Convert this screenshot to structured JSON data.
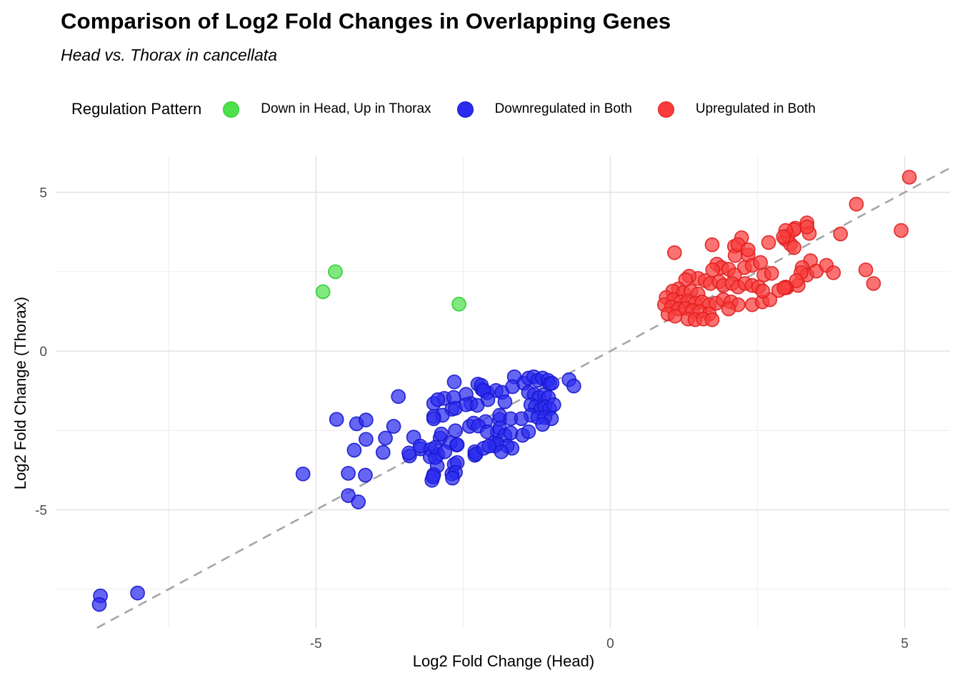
{
  "title": "Comparison of Log2 Fold Changes in Overlapping Genes",
  "subtitle": "Head vs. Thorax in cancellata",
  "legend": {
    "title": "Regulation Pattern",
    "items": [
      {
        "label": "Down in Head, Up in Thorax",
        "color": "#4de04d",
        "stroke": "#2ecc2e"
      },
      {
        "label": "Downregulated in Both",
        "color": "#2b2bee",
        "stroke": "#1717cf"
      },
      {
        "label": "Upregulated in Both",
        "color": "#f93b3b",
        "stroke": "#e01f1f"
      }
    ]
  },
  "colors": {
    "background": "#ffffff",
    "grid_major": "#e4e4e4",
    "grid_minor": "#f0f0f0",
    "identity_line": "#a6a6a6",
    "tick_text": "#4d4d4d"
  },
  "chart_data": {
    "type": "scatter",
    "title": "Comparison of Log2 Fold Changes in Overlapping Genes",
    "subtitle": "Head vs. Thorax in cancellata",
    "xlabel": "Log2 Fold Change (Head)",
    "ylabel": "Log2 Fold Change (Thorax)",
    "xlim": [
      -9.42,
      5.77
    ],
    "ylim": [
      -8.72,
      6.16
    ],
    "x_major_ticks": [
      -5,
      0,
      5
    ],
    "y_major_ticks": [
      5,
      0,
      -5
    ],
    "x_minor_ticks": [
      -7.5,
      -2.5,
      2.5
    ],
    "y_minor_ticks": [
      2.5,
      -2.5,
      -7.5
    ],
    "grid": true,
    "legend_position": "top",
    "identity_line": {
      "equation": "y = x",
      "style": "dashed",
      "color": "#a6a6a6"
    },
    "marker": {
      "radius": 9.5,
      "fill_opacity": 0.72,
      "stroke_opacity": 0.9,
      "stroke_width": 1.7
    },
    "series": [
      {
        "name": "Downregulated in Both",
        "color": "#2b2bee",
        "stroke": "#1717cf",
        "points": [
          [
            -8.66,
            -7.71
          ],
          [
            -8.68,
            -7.98
          ],
          [
            -8.03,
            -7.62
          ],
          [
            -5.22,
            -3.87
          ],
          [
            -4.65,
            -2.15
          ],
          [
            -4.45,
            -3.85
          ],
          [
            -4.45,
            -4.55
          ],
          [
            -4.28,
            -4.75
          ],
          [
            -4.31,
            -2.29
          ],
          [
            -4.15,
            -2.17
          ],
          [
            -4.35,
            -3.12
          ],
          [
            -4.15,
            -2.78
          ],
          [
            -4.16,
            -3.91
          ],
          [
            -3.86,
            -3.19
          ],
          [
            -3.82,
            -2.74
          ],
          [
            -3.68,
            -2.37
          ],
          [
            -3.6,
            -1.43
          ],
          [
            -3.34,
            -2.71
          ],
          [
            -3.41,
            -3.3
          ],
          [
            -3.22,
            -3.08
          ],
          [
            -3.42,
            -3.21
          ],
          [
            -3.23,
            -2.99
          ],
          [
            -3.05,
            -3.1
          ],
          [
            -2.93,
            -3.26
          ],
          [
            -3.06,
            -3.33
          ],
          [
            -2.94,
            -3.62
          ],
          [
            -3.0,
            -3.89
          ],
          [
            -3.03,
            -4.07
          ],
          [
            -3.0,
            -1.65
          ],
          [
            -3.0,
            -2.06
          ],
          [
            -2.82,
            -1.49
          ],
          [
            -2.89,
            -2.74
          ],
          [
            -2.97,
            -3.35
          ],
          [
            -3.01,
            -3.96
          ],
          [
            -2.65,
            -0.97
          ],
          [
            -2.69,
            -1.83
          ],
          [
            -2.63,
            -2.51
          ],
          [
            -2.61,
            -2.96
          ],
          [
            -2.65,
            -3.57
          ],
          [
            -2.69,
            -3.87
          ],
          [
            -2.66,
            -1.46
          ],
          [
            -2.93,
            -1.53
          ],
          [
            -2.63,
            -1.8
          ],
          [
            -2.85,
            -2.02
          ],
          [
            -3.0,
            -2.13
          ],
          [
            -2.87,
            -2.61
          ],
          [
            -2.72,
            -2.88
          ],
          [
            -2.6,
            -2.95
          ],
          [
            -2.97,
            -3.03
          ],
          [
            -2.6,
            -3.51
          ],
          [
            -2.63,
            -3.82
          ],
          [
            -2.68,
            -4.0
          ],
          [
            -2.3,
            -3.28
          ],
          [
            -2.3,
            -3.17
          ],
          [
            -2.81,
            -3.17
          ],
          [
            -2.45,
            -1.36
          ],
          [
            -2.37,
            -1.65
          ],
          [
            -2.39,
            -2.37
          ],
          [
            -2.25,
            -1.04
          ],
          [
            -2.18,
            -1.2
          ],
          [
            -2.12,
            -2.22
          ],
          [
            -2.09,
            -1.31
          ],
          [
            -1.94,
            -1.24
          ],
          [
            -1.88,
            -2.15
          ],
          [
            -1.92,
            -2.56
          ],
          [
            -2.28,
            -3.24
          ],
          [
            -2.19,
            -1.08
          ],
          [
            -2.15,
            -1.24
          ],
          [
            -2.08,
            -1.53
          ],
          [
            -2.45,
            -1.69
          ],
          [
            -2.26,
            -1.71
          ],
          [
            -2.32,
            -2.27
          ],
          [
            -2.24,
            -2.36
          ],
          [
            -2.09,
            -2.54
          ],
          [
            -1.84,
            -1.3
          ],
          [
            -1.79,
            -1.6
          ],
          [
            -1.88,
            -2.02
          ],
          [
            -1.69,
            -2.13
          ],
          [
            -1.88,
            -2.43
          ],
          [
            -1.79,
            -2.65
          ],
          [
            -1.69,
            -2.58
          ],
          [
            -1.63,
            -0.81
          ],
          [
            -1.66,
            -1.12
          ],
          [
            -1.47,
            -1.01
          ],
          [
            -1.39,
            -0.85
          ],
          [
            -1.3,
            -0.81
          ],
          [
            -1.23,
            -0.92
          ],
          [
            -1.15,
            -0.85
          ],
          [
            -1.06,
            -0.92
          ],
          [
            -1.03,
            -1.03
          ],
          [
            -0.99,
            -1.01
          ],
          [
            -1.39,
            -1.3
          ],
          [
            -1.29,
            -1.37
          ],
          [
            -1.21,
            -1.46
          ],
          [
            -1.12,
            -1.37
          ],
          [
            -1.05,
            -1.46
          ],
          [
            -1.35,
            -1.69
          ],
          [
            -1.27,
            -1.75
          ],
          [
            -1.18,
            -1.82
          ],
          [
            -1.11,
            -1.75
          ],
          [
            -1.03,
            -1.82
          ],
          [
            -0.96,
            -1.69
          ],
          [
            -1.35,
            -2.02
          ],
          [
            -1.23,
            -2.09
          ],
          [
            -1.11,
            -2.09
          ],
          [
            -1.0,
            -2.13
          ],
          [
            -1.51,
            -2.13
          ],
          [
            -1.15,
            -2.31
          ],
          [
            -1.97,
            -2.88
          ],
          [
            -1.75,
            -2.99
          ],
          [
            -2.15,
            -3.06
          ],
          [
            -1.96,
            -2.99
          ],
          [
            -1.92,
            -2.92
          ],
          [
            -1.49,
            -2.65
          ],
          [
            -1.39,
            -2.54
          ],
          [
            -1.67,
            -3.06
          ],
          [
            -1.85,
            -3.17
          ],
          [
            -2.06,
            -2.99
          ],
          [
            -0.7,
            -0.9
          ],
          [
            -0.62,
            -1.1
          ]
        ]
      },
      {
        "name": "Upregulated in Both",
        "color": "#f93b3b",
        "stroke": "#e01f1f",
        "points": [
          [
            1.09,
            3.1
          ],
          [
            1.73,
            3.35
          ],
          [
            2.11,
            3.3
          ],
          [
            2.12,
            3.01
          ],
          [
            2.34,
            3.03
          ],
          [
            2.69,
            3.42
          ],
          [
            2.97,
            3.53
          ],
          [
            3.06,
            3.37
          ],
          [
            3.4,
            2.85
          ],
          [
            3.26,
            2.63
          ],
          [
            2.23,
            3.57
          ],
          [
            2.17,
            3.35
          ],
          [
            2.34,
            3.19
          ],
          [
            3.02,
            3.64
          ],
          [
            3.14,
            3.87
          ],
          [
            3.34,
            4.04
          ],
          [
            3.38,
            3.71
          ],
          [
            1.81,
            2.74
          ],
          [
            1.89,
            2.63
          ],
          [
            1.74,
            2.56
          ],
          [
            2.01,
            2.58
          ],
          [
            2.28,
            2.63
          ],
          [
            2.41,
            2.7
          ],
          [
            2.55,
            2.79
          ],
          [
            2.61,
            2.4
          ],
          [
            2.74,
            2.45
          ],
          [
            2.11,
            2.4
          ],
          [
            1.49,
            2.29
          ],
          [
            1.34,
            2.36
          ],
          [
            1.28,
            2.25
          ],
          [
            1.61,
            2.22
          ],
          [
            1.7,
            2.13
          ],
          [
            1.85,
            2.18
          ],
          [
            1.92,
            2.07
          ],
          [
            2.07,
            2.13
          ],
          [
            2.17,
            2.02
          ],
          [
            2.29,
            2.13
          ],
          [
            2.41,
            2.07
          ],
          [
            2.52,
            2.02
          ],
          [
            1.16,
            1.96
          ],
          [
            1.06,
            1.89
          ],
          [
            1.24,
            1.84
          ],
          [
            1.37,
            1.89
          ],
          [
            1.49,
            1.8
          ],
          [
            0.95,
            1.69
          ],
          [
            1.07,
            1.62
          ],
          [
            1.2,
            1.55
          ],
          [
            1.32,
            1.57
          ],
          [
            1.44,
            1.51
          ],
          [
            1.56,
            1.55
          ],
          [
            1.68,
            1.46
          ],
          [
            1.8,
            1.51
          ],
          [
            0.92,
            1.46
          ],
          [
            1.04,
            1.39
          ],
          [
            1.16,
            1.33
          ],
          [
            1.28,
            1.35
          ],
          [
            1.4,
            1.28
          ],
          [
            1.52,
            1.24
          ],
          [
            0.98,
            1.17
          ],
          [
            1.1,
            1.1
          ],
          [
            1.68,
            1.17
          ],
          [
            1.92,
            1.62
          ],
          [
            2.05,
            1.55
          ],
          [
            2.17,
            1.46
          ],
          [
            2.01,
            1.33
          ],
          [
            1.32,
            1.01
          ],
          [
            1.44,
            0.99
          ],
          [
            1.58,
            1.01
          ],
          [
            1.73,
            0.99
          ],
          [
            2.41,
            1.46
          ],
          [
            2.58,
            1.55
          ],
          [
            2.71,
            1.62
          ],
          [
            2.59,
            1.89
          ],
          [
            2.86,
            1.91
          ],
          [
            3.0,
            2.0
          ],
          [
            3.19,
            2.07
          ],
          [
            3.34,
            2.4
          ],
          [
            3.5,
            2.52
          ],
          [
            5.08,
            5.48
          ],
          [
            4.18,
            4.63
          ],
          [
            3.91,
            3.69
          ],
          [
            4.94,
            3.8
          ],
          [
            3.34,
            3.91
          ],
          [
            3.12,
            3.82
          ],
          [
            2.98,
            3.8
          ],
          [
            2.94,
            3.6
          ],
          [
            3.12,
            3.26
          ],
          [
            3.67,
            2.7
          ],
          [
            3.79,
            2.47
          ],
          [
            3.24,
            2.47
          ],
          [
            3.16,
            2.22
          ],
          [
            2.98,
            2.02
          ],
          [
            4.34,
            2.56
          ],
          [
            4.47,
            2.13
          ],
          [
            2.95,
            1.99
          ]
        ]
      },
      {
        "name": "Down in Head, Up in Thorax",
        "color": "#4de04d",
        "stroke": "#2ecc2e",
        "points": [
          [
            -4.67,
            2.5
          ],
          [
            -4.88,
            1.87
          ],
          [
            -2.57,
            1.48
          ]
        ]
      }
    ]
  }
}
